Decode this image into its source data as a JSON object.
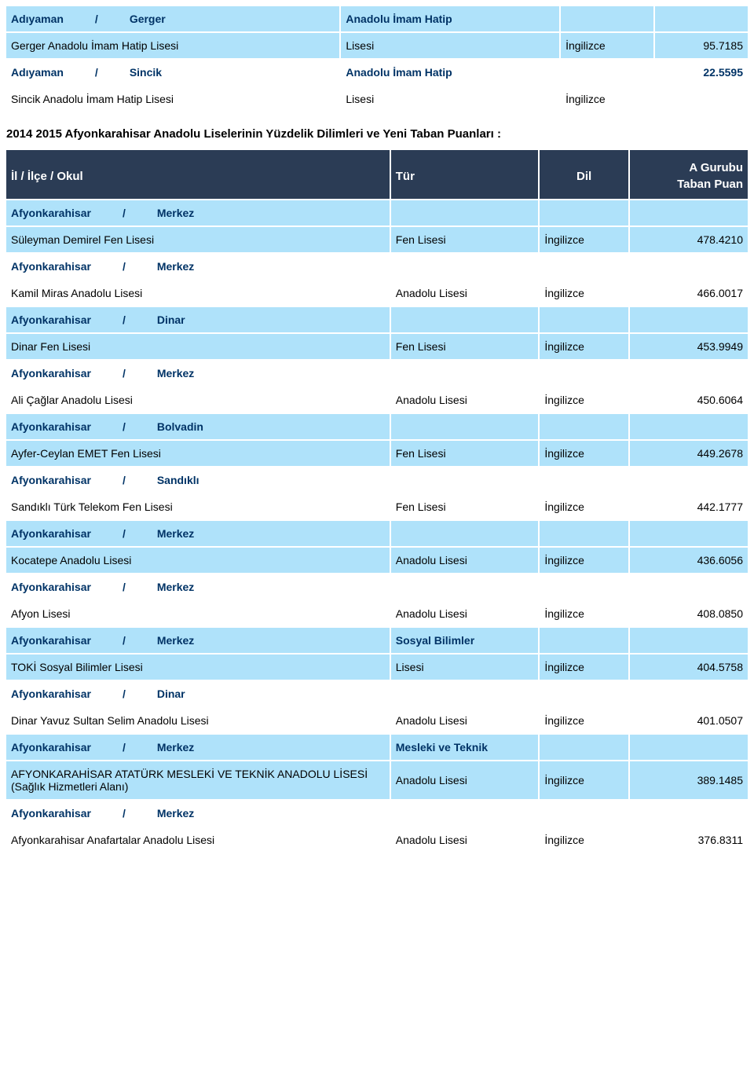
{
  "colors": {
    "blue": "#afe2fa",
    "white": "#ffffff",
    "header_bg": "#2b3c55",
    "header_fg": "#ffffff",
    "loc_fg": "#003366"
  },
  "pre_rows": [
    {
      "bg": "blue",
      "il": "Adıyaman",
      "ilce": "Gerger",
      "okul": "Gerger Anadolu İmam Hatip Lisesi",
      "tur_loc": "Anadolu İmam Hatip",
      "tur": "Lisesi",
      "dil": "İngilizce",
      "puan": "95.7185"
    },
    {
      "bg": "white",
      "il": "Adıyaman",
      "ilce": "Sincik",
      "okul": "Sincik Anadolu İmam Hatip Lisesi",
      "tur_loc": "Anadolu İmam Hatip",
      "tur": "Lisesi",
      "dil": "İngilizce",
      "puan": "22.5595",
      "puan_on_loc": true
    }
  ],
  "caption": "2014 2015 Afyonkarahisar Anadolu Liselerinin Yüzdelik Dilimleri ve Yeni Taban Puanları :",
  "header": {
    "school": "İl / İlçe / Okul",
    "tur": "Tür",
    "dil": "Dil",
    "puan_top": "A Gurubu",
    "puan": "Taban Puan"
  },
  "rows": [
    {
      "bg": "blue",
      "il": "Afyonkarahisar",
      "ilce": "Merkez",
      "okul": "Süleyman Demirel Fen Lisesi",
      "tur": "Fen Lisesi",
      "dil": "İngilizce",
      "puan": "478.4210"
    },
    {
      "bg": "white",
      "il": "Afyonkarahisar",
      "ilce": "Merkez",
      "okul": "Kamil Miras Anadolu Lisesi",
      "tur": "Anadolu Lisesi",
      "dil": "İngilizce",
      "puan": "466.0017"
    },
    {
      "bg": "blue",
      "il": "Afyonkarahisar",
      "ilce": "Dinar",
      "okul": "Dinar Fen Lisesi",
      "tur": "Fen Lisesi",
      "dil": "İngilizce",
      "puan": "453.9949"
    },
    {
      "bg": "white",
      "il": "Afyonkarahisar",
      "ilce": "Merkez",
      "okul": "Ali Çağlar Anadolu Lisesi",
      "tur": "Anadolu Lisesi",
      "dil": "İngilizce",
      "puan": "450.6064"
    },
    {
      "bg": "blue",
      "il": "Afyonkarahisar",
      "ilce": "Bolvadin",
      "okul": "Ayfer-Ceylan EMET Fen Lisesi",
      "tur": "Fen Lisesi",
      "dil": "İngilizce",
      "puan": "449.2678"
    },
    {
      "bg": "white",
      "il": "Afyonkarahisar",
      "ilce": "Sandıklı",
      "okul": "Sandıklı Türk Telekom Fen Lisesi",
      "tur": "Fen Lisesi",
      "dil": "İngilizce",
      "puan": "442.1777"
    },
    {
      "bg": "blue",
      "il": "Afyonkarahisar",
      "ilce": "Merkez",
      "okul": "Kocatepe Anadolu Lisesi",
      "tur": "Anadolu Lisesi",
      "dil": "İngilizce",
      "puan": "436.6056"
    },
    {
      "bg": "white",
      "il": "Afyonkarahisar",
      "ilce": "Merkez",
      "okul": "Afyon Lisesi",
      "tur": "Anadolu Lisesi",
      "dil": "İngilizce",
      "puan": "408.0850"
    },
    {
      "bg": "blue",
      "il": "Afyonkarahisar",
      "ilce": "Merkez",
      "okul": "TOKİ Sosyal Bilimler Lisesi",
      "tur_loc": "Sosyal    Bilimler",
      "tur": "Lisesi",
      "dil": "İngilizce",
      "puan": "404.5758"
    },
    {
      "bg": "white",
      "il": "Afyonkarahisar",
      "ilce": "Dinar",
      "okul": "Dinar Yavuz Sultan Selim Anadolu Lisesi",
      "tur": "Anadolu Lisesi",
      "dil": "İngilizce",
      "puan": "401.0507"
    },
    {
      "bg": "blue",
      "il": "Afyonkarahisar",
      "ilce": "Merkez",
      "okul": "AFYONKARAHİSAR ATATÜRK MESLEKİ VE TEKNİK ANADOLU LİSESİ (Sağlık Hizmetleri Alanı)",
      "tur_loc": "Mesleki ve Teknik",
      "tur": "Anadolu Lisesi",
      "dil": "İngilizce",
      "puan": "389.1485"
    },
    {
      "bg": "white",
      "il": "Afyonkarahisar",
      "ilce": "Merkez",
      "okul": "Afyonkarahisar Anafartalar Anadolu Lisesi",
      "tur": "Anadolu Lisesi",
      "dil": "İngilizce",
      "puan": "376.8311"
    }
  ]
}
